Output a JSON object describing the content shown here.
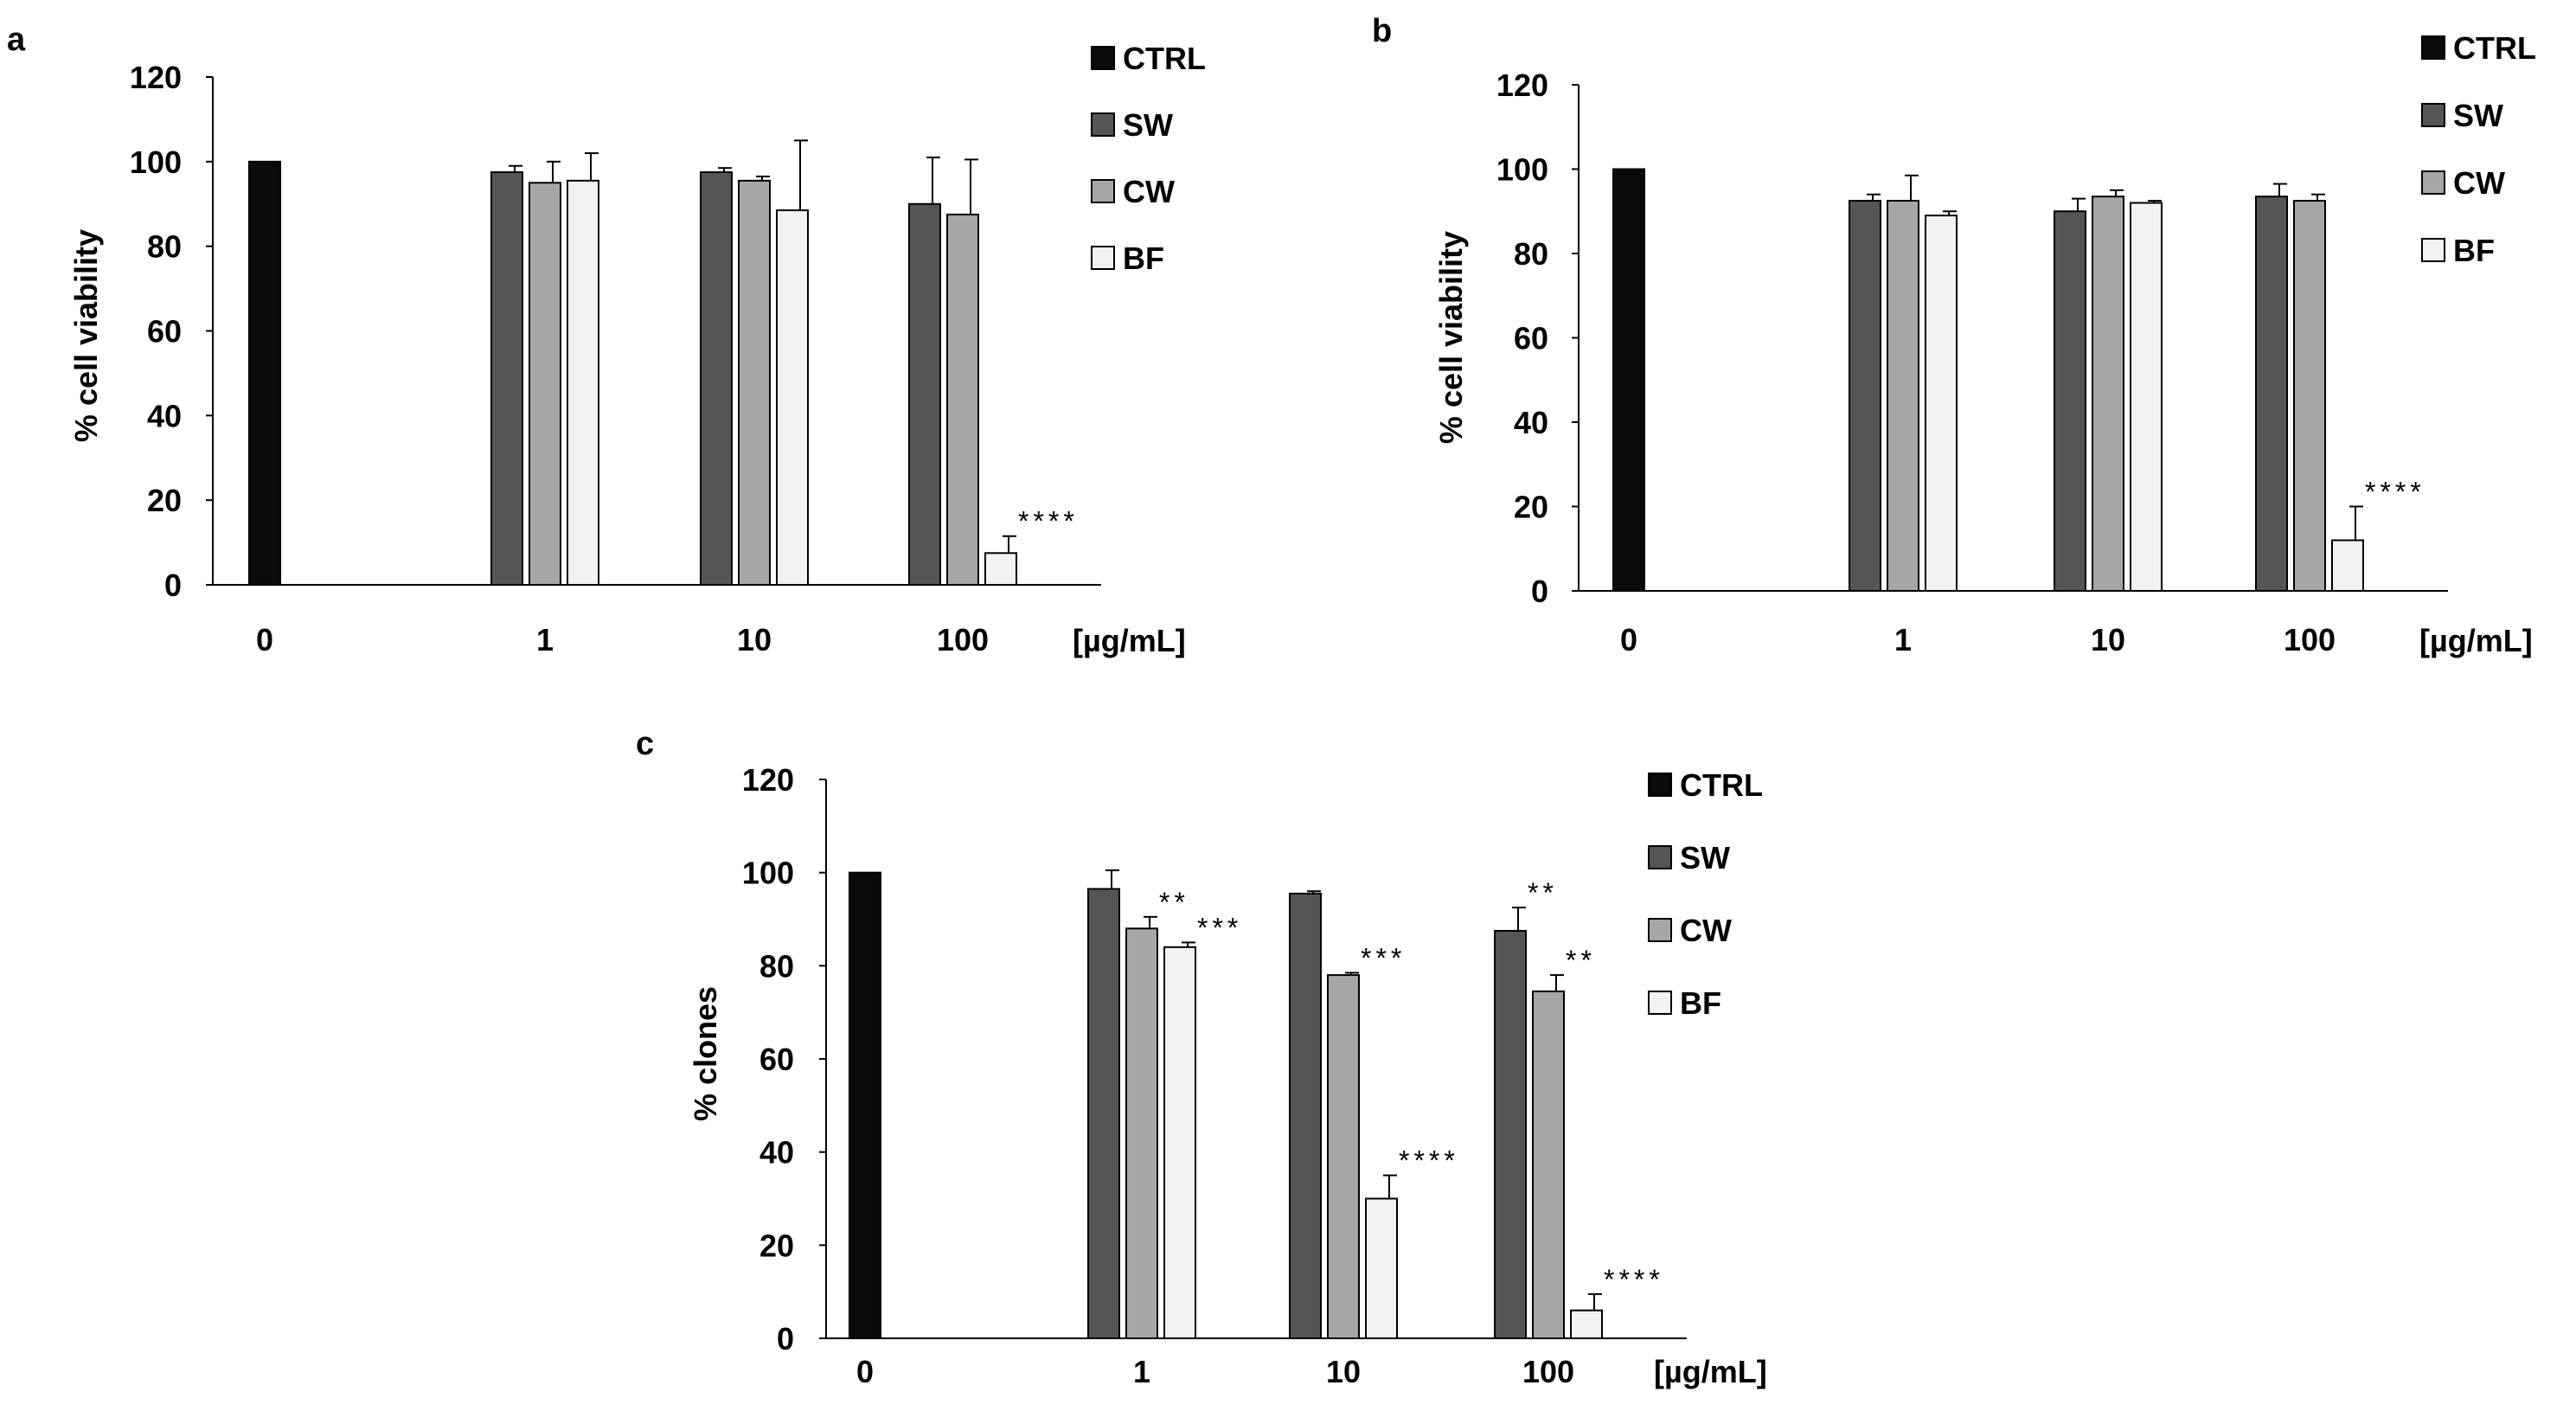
{
  "colors": {
    "CTRL": "#0a0a0a",
    "SW": "#555555",
    "CW": "#a6a6a6",
    "BF": "#f2f2f2",
    "axis": "#000000"
  },
  "chart_data": [
    {
      "panel": "a",
      "type": "bar",
      "ylabel": "% cell viability",
      "xunit": "[µg/mL]",
      "ylim": [
        0,
        120
      ],
      "yticks": [
        0,
        20,
        40,
        60,
        80,
        100,
        120
      ],
      "categories": [
        "0",
        "1",
        "10",
        "100"
      ],
      "legend": [
        "CTRL",
        "SW",
        "CW",
        "BF"
      ],
      "legend_position": "top-right",
      "series": [
        {
          "name": "CTRL",
          "values": [
            100,
            null,
            null,
            null
          ],
          "errors": [
            0,
            null,
            null,
            null
          ],
          "annotations": [
            "",
            "",
            "",
            ""
          ]
        },
        {
          "name": "SW",
          "values": [
            null,
            97.5,
            97.5,
            90
          ],
          "errors": [
            null,
            1.5,
            1,
            11
          ],
          "annotations": [
            "",
            "",
            "",
            ""
          ]
        },
        {
          "name": "CW",
          "values": [
            null,
            95,
            95.5,
            87.5
          ],
          "errors": [
            null,
            5,
            1,
            13
          ],
          "annotations": [
            "",
            "",
            "",
            ""
          ]
        },
        {
          "name": "BF",
          "values": [
            null,
            95.5,
            88.5,
            7.5
          ],
          "errors": [
            null,
            6.5,
            16.5,
            4
          ],
          "annotations": [
            "",
            "",
            "",
            "****"
          ]
        }
      ]
    },
    {
      "panel": "b",
      "type": "bar",
      "ylabel": "% cell viability",
      "xunit": "[µg/mL]",
      "ylim": [
        0,
        120
      ],
      "yticks": [
        0,
        20,
        40,
        60,
        80,
        100,
        120
      ],
      "categories": [
        "0",
        "1",
        "10",
        "100"
      ],
      "legend": [
        "CTRL",
        "SW",
        "CW",
        "BF"
      ],
      "legend_position": "top-right",
      "series": [
        {
          "name": "CTRL",
          "values": [
            100,
            null,
            null,
            null
          ],
          "errors": [
            0,
            null,
            null,
            null
          ],
          "annotations": [
            "",
            "",
            "",
            ""
          ]
        },
        {
          "name": "SW",
          "values": [
            null,
            92.5,
            90,
            93.5
          ],
          "errors": [
            null,
            1.5,
            3,
            3
          ],
          "annotations": [
            "",
            "",
            "",
            ""
          ]
        },
        {
          "name": "CW",
          "values": [
            null,
            92.5,
            93.5,
            92.5
          ],
          "errors": [
            null,
            6,
            1.5,
            1.5
          ],
          "annotations": [
            "",
            "",
            "",
            ""
          ]
        },
        {
          "name": "BF",
          "values": [
            null,
            89,
            92,
            12
          ],
          "errors": [
            null,
            1,
            0.5,
            8
          ],
          "annotations": [
            "",
            "",
            "",
            "****"
          ]
        }
      ]
    },
    {
      "panel": "c",
      "type": "bar",
      "ylabel": "% clones",
      "xunit": "[µg/mL]",
      "ylim": [
        0,
        120
      ],
      "yticks": [
        0,
        20,
        40,
        60,
        80,
        100,
        120
      ],
      "categories": [
        "0",
        "1",
        "10",
        "100"
      ],
      "legend": [
        "CTRL",
        "SW",
        "CW",
        "BF"
      ],
      "legend_position": "top-right",
      "series": [
        {
          "name": "CTRL",
          "values": [
            100,
            null,
            null,
            null
          ],
          "errors": [
            0,
            null,
            null,
            null
          ],
          "annotations": [
            "",
            "",
            "",
            ""
          ]
        },
        {
          "name": "SW",
          "values": [
            null,
            96.5,
            95.5,
            87.5
          ],
          "errors": [
            null,
            4,
            0.5,
            5
          ],
          "annotations": [
            "",
            "",
            "",
            "**"
          ]
        },
        {
          "name": "CW",
          "values": [
            null,
            88,
            78,
            74.5
          ],
          "errors": [
            null,
            2.5,
            0.5,
            3.5
          ],
          "annotations": [
            "",
            "**",
            "***",
            "**"
          ]
        },
        {
          "name": "BF",
          "values": [
            null,
            84,
            30,
            6
          ],
          "errors": [
            null,
            1,
            5,
            3.5
          ],
          "annotations": [
            "",
            "***",
            "****",
            "****"
          ]
        }
      ]
    }
  ]
}
